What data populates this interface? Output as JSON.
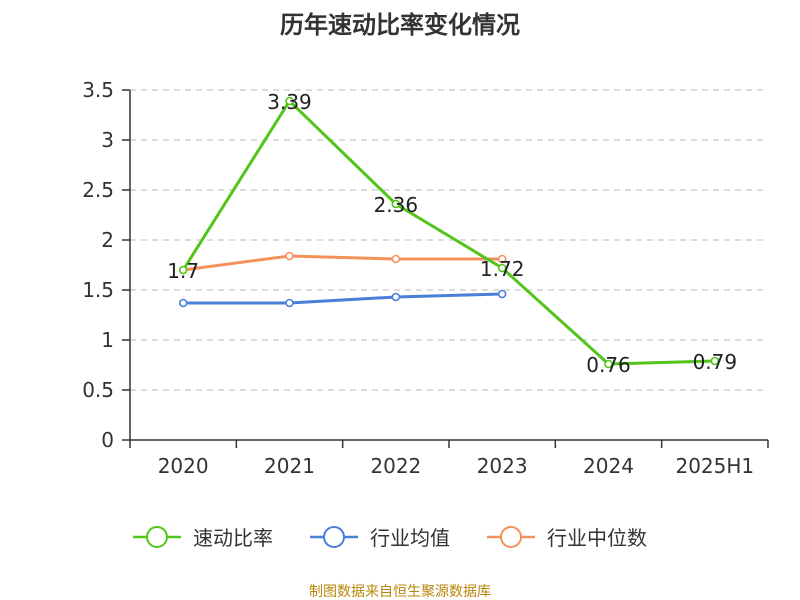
{
  "chart_data": {
    "type": "line",
    "title": "历年速动比率变化情况",
    "categories": [
      "2020",
      "2021",
      "2022",
      "2023",
      "2024",
      "2025H1"
    ],
    "ylim": [
      0,
      3.5
    ],
    "yticks": [
      "0",
      "0.5",
      "1",
      "1.5",
      "2",
      "2.5",
      "3",
      "3.5"
    ],
    "grid": true,
    "legend_position": "bottom",
    "series": [
      {
        "name": "速动比率",
        "color": "#52c41a",
        "values": [
          1.7,
          3.39,
          2.36,
          1.72,
          0.76,
          0.79
        ],
        "labels": [
          "1.7",
          "3.39",
          "2.36",
          "1.72",
          "0.76",
          "0.79"
        ]
      },
      {
        "name": "行业均值",
        "color": "#4a7fd6",
        "values": [
          1.37,
          1.37,
          1.43,
          1.46,
          null,
          null
        ]
      },
      {
        "name": "行业中位数",
        "color": "#f4915a",
        "values": [
          1.7,
          1.84,
          1.81,
          1.81,
          null,
          null
        ]
      }
    ]
  },
  "source": "制图数据来自恒生聚源数据库"
}
